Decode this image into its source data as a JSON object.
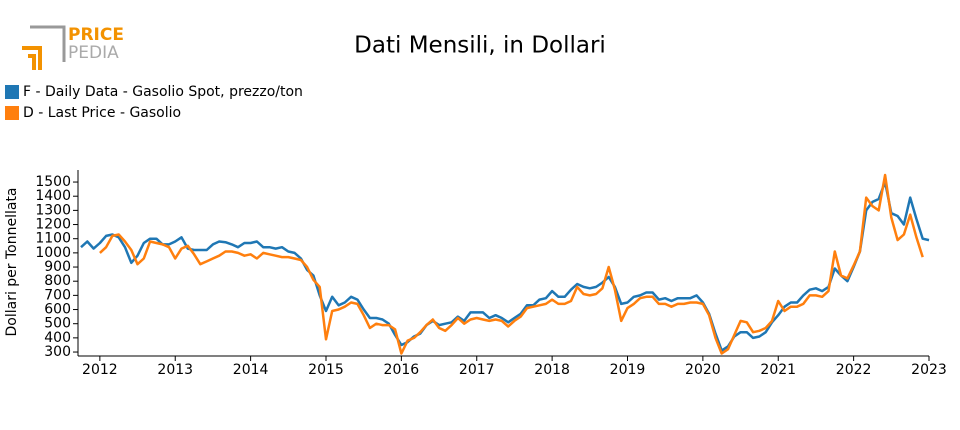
{
  "logo": {
    "top": "PRICE",
    "bottom": "PEDIA"
  },
  "chart_data": {
    "type": "line",
    "title": "Dati Mensili, in Dollari",
    "ylabel": "Dollari per Tonnellata",
    "x": [
      2011.75,
      2011.833,
      2011.917,
      2012,
      2012.083,
      2012.167,
      2012.25,
      2012.333,
      2012.417,
      2012.5,
      2012.583,
      2012.667,
      2012.75,
      2012.833,
      2012.917,
      2013,
      2013.083,
      2013.167,
      2013.25,
      2013.333,
      2013.417,
      2013.5,
      2013.583,
      2013.667,
      2013.75,
      2013.833,
      2013.917,
      2014,
      2014.083,
      2014.167,
      2014.25,
      2014.333,
      2014.417,
      2014.5,
      2014.583,
      2014.667,
      2014.75,
      2014.833,
      2014.917,
      2015,
      2015.083,
      2015.167,
      2015.25,
      2015.333,
      2015.417,
      2015.5,
      2015.583,
      2015.667,
      2015.75,
      2015.833,
      2015.917,
      2016,
      2016.083,
      2016.167,
      2016.25,
      2016.333,
      2016.417,
      2016.5,
      2016.583,
      2016.667,
      2016.75,
      2016.833,
      2016.917,
      2017,
      2017.083,
      2017.167,
      2017.25,
      2017.333,
      2017.417,
      2017.5,
      2017.583,
      2017.667,
      2017.75,
      2017.833,
      2017.917,
      2018,
      2018.083,
      2018.167,
      2018.25,
      2018.333,
      2018.417,
      2018.5,
      2018.583,
      2018.667,
      2018.75,
      2018.833,
      2018.917,
      2019,
      2019.083,
      2019.167,
      2019.25,
      2019.333,
      2019.417,
      2019.5,
      2019.583,
      2019.667,
      2019.75,
      2019.833,
      2019.917,
      2020,
      2020.083,
      2020.167,
      2020.25,
      2020.333,
      2020.417,
      2020.5,
      2020.583,
      2020.667,
      2020.75,
      2020.833,
      2020.917,
      2021,
      2021.083,
      2021.167,
      2021.25,
      2021.333,
      2021.417,
      2021.5,
      2021.583,
      2021.667,
      2021.75,
      2021.833,
      2021.917,
      2022,
      2022.083,
      2022.167,
      2022.25,
      2022.333,
      2022.417,
      2022.5,
      2022.583,
      2022.667,
      2022.75,
      2022.833,
      2022.917,
      2023
    ],
    "series": [
      {
        "name": "F - Daily Data - Gasolio Spot, prezzo/ton",
        "color": "#1f77b4",
        "values": [
          1040,
          1080,
          1030,
          1070,
          1120,
          1130,
          1110,
          1040,
          930,
          980,
          1070,
          1100,
          1100,
          1060,
          1060,
          1080,
          1110,
          1030,
          1020,
          1020,
          1020,
          1060,
          1080,
          1075,
          1060,
          1040,
          1070,
          1070,
          1080,
          1040,
          1040,
          1030,
          1040,
          1010,
          1000,
          960,
          880,
          840,
          700,
          590,
          690,
          630,
          650,
          690,
          670,
          600,
          540,
          540,
          530,
          500,
          420,
          350,
          370,
          410,
          430,
          490,
          520,
          490,
          500,
          510,
          550,
          520,
          580,
          580,
          580,
          540,
          560,
          540,
          510,
          540,
          570,
          630,
          630,
          670,
          680,
          730,
          690,
          690,
          740,
          780,
          760,
          750,
          760,
          790,
          830,
          760,
          640,
          650,
          690,
          700,
          720,
          720,
          670,
          680,
          660,
          680,
          680,
          680,
          700,
          650,
          570,
          430,
          310,
          340,
          410,
          440,
          440,
          400,
          410,
          440,
          510,
          560,
          620,
          650,
          650,
          700,
          740,
          750,
          730,
          760,
          890,
          840,
          800,
          900,
          1010,
          1300,
          1360,
          1380,
          1500,
          1280,
          1260,
          1200,
          1390,
          1240,
          1100,
          1090
        ]
      },
      {
        "name": "D - Last Price - Gasolio",
        "color": "#ff7f0e",
        "values": [
          null,
          null,
          null,
          1000,
          1040,
          1120,
          1130,
          1080,
          1020,
          920,
          960,
          1080,
          1070,
          1060,
          1040,
          960,
          1030,
          1050,
          990,
          920,
          940,
          960,
          980,
          1010,
          1010,
          1000,
          980,
          990,
          960,
          1000,
          990,
          980,
          970,
          970,
          960,
          950,
          900,
          810,
          760,
          390,
          590,
          600,
          620,
          650,
          640,
          560,
          470,
          500,
          490,
          490,
          460,
          290,
          380,
          400,
          440,
          490,
          530,
          470,
          450,
          490,
          540,
          500,
          530,
          540,
          530,
          520,
          530,
          520,
          480,
          520,
          550,
          610,
          620,
          630,
          640,
          670,
          640,
          640,
          660,
          760,
          710,
          700,
          710,
          750,
          900,
          740,
          520,
          610,
          640,
          680,
          690,
          690,
          640,
          640,
          620,
          640,
          640,
          650,
          650,
          640,
          560,
          400,
          290,
          320,
          420,
          520,
          510,
          440,
          450,
          470,
          520,
          660,
          590,
          620,
          620,
          640,
          700,
          700,
          690,
          730,
          1010,
          840,
          820,
          910,
          1010,
          1390,
          1330,
          1300,
          1550,
          1250,
          1090,
          1130,
          1270,
          1110,
          970,
          null
        ]
      }
    ],
    "xlim": [
      2011.71,
      2023
    ],
    "xticks": [
      2012,
      2013,
      2014,
      2015,
      2016,
      2017,
      2018,
      2019,
      2020,
      2021,
      2022,
      2023
    ],
    "ylim": [
      272,
      1585
    ],
    "yticks": [
      300,
      400,
      500,
      600,
      700,
      800,
      900,
      1000,
      1100,
      1200,
      1300,
      1400,
      1500
    ],
    "grid": false,
    "legend": "top-left"
  }
}
